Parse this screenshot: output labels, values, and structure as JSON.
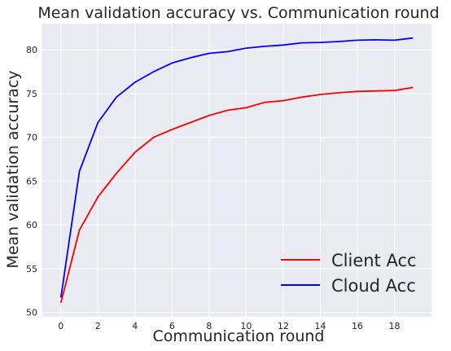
{
  "chart_data": {
    "type": "line",
    "title": "Mean validation accuracy vs. Communication round",
    "xlabel": "Communication round",
    "ylabel": "Mean validation accuracy",
    "xlim": [
      -1,
      20
    ],
    "ylim": [
      49.5,
      83
    ],
    "xticks": [
      0,
      2,
      4,
      6,
      8,
      10,
      12,
      14,
      16,
      18
    ],
    "yticks": [
      50,
      55,
      60,
      65,
      70,
      75,
      80
    ],
    "x": [
      0,
      1,
      2,
      3,
      4,
      5,
      6,
      7,
      8,
      9,
      10,
      11,
      12,
      13,
      14,
      15,
      16,
      17,
      18,
      19
    ],
    "series": [
      {
        "name": "Client Acc",
        "color": "#ff0000",
        "values": [
          51.1,
          59.4,
          63.2,
          65.9,
          68.3,
          70.0,
          70.9,
          71.7,
          72.5,
          73.1,
          73.4,
          74.0,
          74.2,
          74.6,
          74.9,
          75.1,
          75.25,
          75.3,
          75.35,
          75.7
        ]
      },
      {
        "name": "Cloud Acc",
        "color": "#0000ff",
        "values": [
          51.7,
          66.1,
          71.7,
          74.6,
          76.3,
          77.5,
          78.5,
          79.1,
          79.6,
          79.8,
          80.2,
          80.4,
          80.55,
          80.8,
          80.85,
          80.95,
          81.1,
          81.15,
          81.1,
          81.35
        ]
      }
    ],
    "grid": true,
    "legend": "lower-right",
    "background": "#eaeaf2",
    "grid_color": "#ffffff"
  }
}
